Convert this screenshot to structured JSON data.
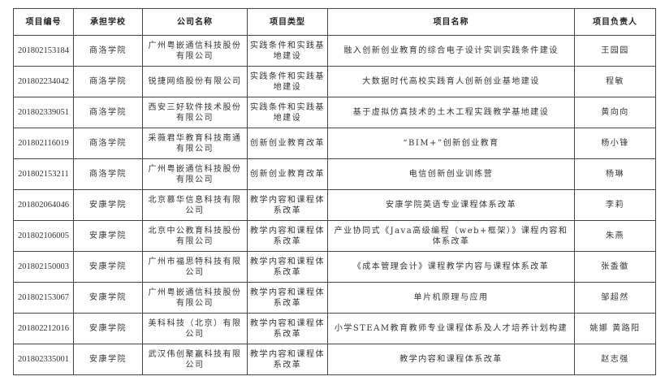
{
  "table": {
    "headers": [
      "项目编号",
      "承担学校",
      "公司名称",
      "项目类型",
      "项目名称",
      "项目负责人"
    ],
    "rows": [
      [
        "201802153184",
        "商洛学院",
        "广州粤嵌通信科技股份有限公司",
        "实践条件和实践基地建设",
        "融入创新创业教育的综合电子设计实训实践条件建设",
        "王园园"
      ],
      [
        "201802234042",
        "商洛学院",
        "锐捷网络股份有限公司",
        "实践条件和实践基地建设",
        "大数据时代高校实践育人创新创业基地建设",
        "程敏"
      ],
      [
        "201802339051",
        "商洛学院",
        "西安三好软件技术股份有限公司",
        "实践条件和实践基地建设",
        "基于虚拟仿真技术的土木工程实践教学基地建设",
        "黄向向"
      ],
      [
        "201802116019",
        "商洛学院",
        "采薇君华教育科技南通有限公司",
        "创新创业教育改革",
        "“BIM+”创新创业教育",
        "杨小锋"
      ],
      [
        "201802153211",
        "商洛学院",
        "广州粤嵌通信科技股份有限公司",
        "创新创业教育改革",
        "电信创新创业训练营",
        "杨琳"
      ],
      [
        "201802064046",
        "安康学院",
        "北京慕华信息科技有限公司",
        "教学内容和课程体系改革",
        "安康学院英语专业课程体系改革",
        "李莉"
      ],
      [
        "201802106005",
        "安康学院",
        "北京中公教育科技股份有限公司",
        "教学内容和课程体系改革",
        "产业协同式《Java高级编程（web+框架）》课程内容和体系改革",
        "朱燕"
      ],
      [
        "201802150003",
        "安康学院",
        "广州市福思特科技有限公司",
        "教学内容和课程体系改革",
        "《成本管理会计》课程教学内容与课程体系改革",
        "张盉徽"
      ],
      [
        "201802153067",
        "安康学院",
        "广州粤嵌通信科技股份有限公司",
        "教学内容和课程体系改革",
        "单片机原理与应用",
        "邹超然"
      ],
      [
        "201802212016",
        "安康学院",
        "美科科技（北京）有限公司",
        "教学内容和课程体系改革",
        "小学STEAM教育教师专业课程体系及人才培养计划构建",
        "姚娜 黄路阳"
      ],
      [
        "201802335001",
        "安康学院",
        "武汉伟创聚赢科技有限公司",
        "教学内容和课程体系改革",
        "教学内容和课程体系改革",
        "赵志强"
      ]
    ]
  }
}
